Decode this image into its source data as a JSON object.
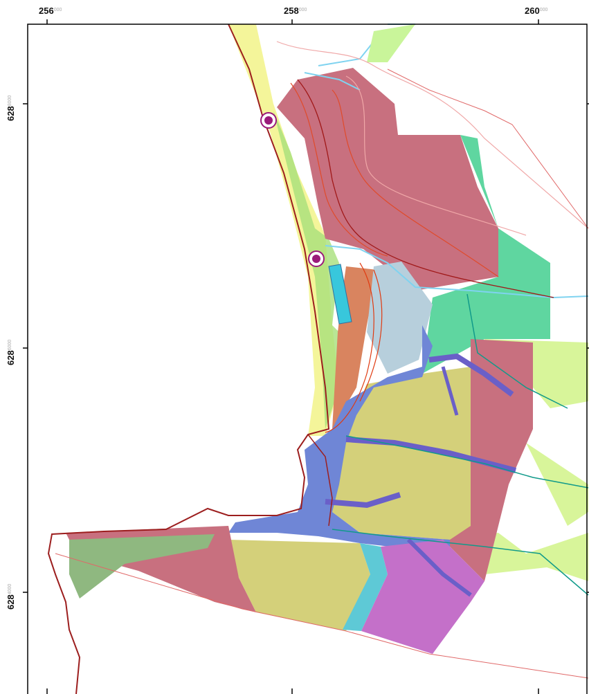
{
  "x_ticks": [
    {
      "label": "256",
      "sup": "000"
    },
    {
      "label": "258",
      "sup": "000"
    },
    {
      "label": "260",
      "sup": "000"
    }
  ],
  "y_ticks": [
    {
      "label": "628",
      "sup": "8000"
    },
    {
      "label": "628",
      "sup": "6000"
    },
    {
      "label": "628",
      "sup": "4000"
    }
  ]
}
